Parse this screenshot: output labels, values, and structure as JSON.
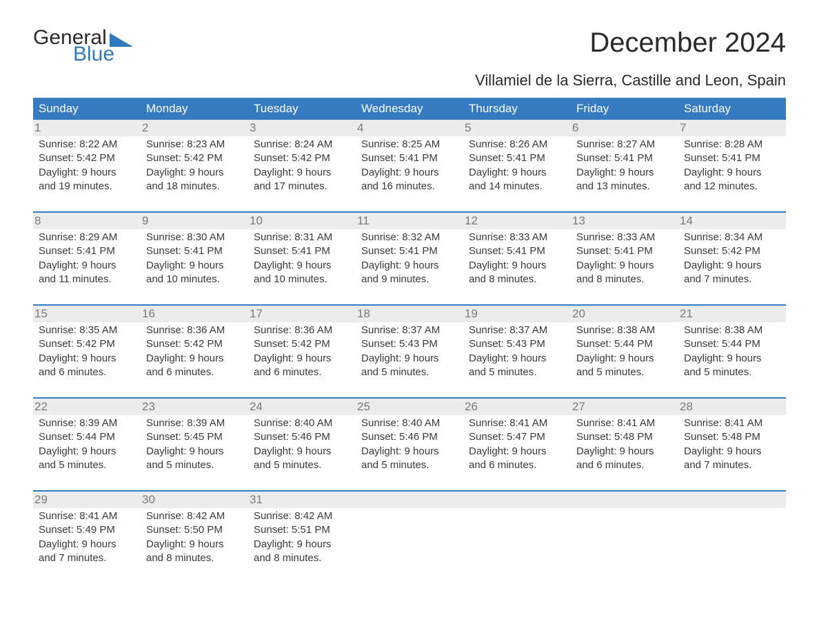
{
  "logo": {
    "text1": "General",
    "text2": "Blue"
  },
  "title": "December 2024",
  "location": "Villamiel de la Sierra, Castille and Leon, Spain",
  "colors": {
    "header_bg": "#367abf",
    "header_text": "#ffffff",
    "daynum_bg": "#ececec",
    "daynum_text": "#7a7a7a",
    "body_text": "#3a3a3a",
    "logo_dark": "#2a2a2a",
    "logo_blue": "#2f79bf",
    "week_rule": "#367abf",
    "page_bg": "#ffffff"
  },
  "layout": {
    "columns": 7,
    "rows": 5,
    "title_fontsize": 40,
    "location_fontsize": 22,
    "weekday_fontsize": 17,
    "daynum_fontsize": 17,
    "body_fontsize": 15
  },
  "weekdays": [
    "Sunday",
    "Monday",
    "Tuesday",
    "Wednesday",
    "Thursday",
    "Friday",
    "Saturday"
  ],
  "weeks": [
    [
      {
        "n": "1",
        "sunrise": "Sunrise: 8:22 AM",
        "sunset": "Sunset: 5:42 PM",
        "d1": "Daylight: 9 hours",
        "d2": "and 19 minutes."
      },
      {
        "n": "2",
        "sunrise": "Sunrise: 8:23 AM",
        "sunset": "Sunset: 5:42 PM",
        "d1": "Daylight: 9 hours",
        "d2": "and 18 minutes."
      },
      {
        "n": "3",
        "sunrise": "Sunrise: 8:24 AM",
        "sunset": "Sunset: 5:42 PM",
        "d1": "Daylight: 9 hours",
        "d2": "and 17 minutes."
      },
      {
        "n": "4",
        "sunrise": "Sunrise: 8:25 AM",
        "sunset": "Sunset: 5:41 PM",
        "d1": "Daylight: 9 hours",
        "d2": "and 16 minutes."
      },
      {
        "n": "5",
        "sunrise": "Sunrise: 8:26 AM",
        "sunset": "Sunset: 5:41 PM",
        "d1": "Daylight: 9 hours",
        "d2": "and 14 minutes."
      },
      {
        "n": "6",
        "sunrise": "Sunrise: 8:27 AM",
        "sunset": "Sunset: 5:41 PM",
        "d1": "Daylight: 9 hours",
        "d2": "and 13 minutes."
      },
      {
        "n": "7",
        "sunrise": "Sunrise: 8:28 AM",
        "sunset": "Sunset: 5:41 PM",
        "d1": "Daylight: 9 hours",
        "d2": "and 12 minutes."
      }
    ],
    [
      {
        "n": "8",
        "sunrise": "Sunrise: 8:29 AM",
        "sunset": "Sunset: 5:41 PM",
        "d1": "Daylight: 9 hours",
        "d2": "and 11 minutes."
      },
      {
        "n": "9",
        "sunrise": "Sunrise: 8:30 AM",
        "sunset": "Sunset: 5:41 PM",
        "d1": "Daylight: 9 hours",
        "d2": "and 10 minutes."
      },
      {
        "n": "10",
        "sunrise": "Sunrise: 8:31 AM",
        "sunset": "Sunset: 5:41 PM",
        "d1": "Daylight: 9 hours",
        "d2": "and 10 minutes."
      },
      {
        "n": "11",
        "sunrise": "Sunrise: 8:32 AM",
        "sunset": "Sunset: 5:41 PM",
        "d1": "Daylight: 9 hours",
        "d2": "and 9 minutes."
      },
      {
        "n": "12",
        "sunrise": "Sunrise: 8:33 AM",
        "sunset": "Sunset: 5:41 PM",
        "d1": "Daylight: 9 hours",
        "d2": "and 8 minutes."
      },
      {
        "n": "13",
        "sunrise": "Sunrise: 8:33 AM",
        "sunset": "Sunset: 5:41 PM",
        "d1": "Daylight: 9 hours",
        "d2": "and 8 minutes."
      },
      {
        "n": "14",
        "sunrise": "Sunrise: 8:34 AM",
        "sunset": "Sunset: 5:42 PM",
        "d1": "Daylight: 9 hours",
        "d2": "and 7 minutes."
      }
    ],
    [
      {
        "n": "15",
        "sunrise": "Sunrise: 8:35 AM",
        "sunset": "Sunset: 5:42 PM",
        "d1": "Daylight: 9 hours",
        "d2": "and 6 minutes."
      },
      {
        "n": "16",
        "sunrise": "Sunrise: 8:36 AM",
        "sunset": "Sunset: 5:42 PM",
        "d1": "Daylight: 9 hours",
        "d2": "and 6 minutes."
      },
      {
        "n": "17",
        "sunrise": "Sunrise: 8:36 AM",
        "sunset": "Sunset: 5:42 PM",
        "d1": "Daylight: 9 hours",
        "d2": "and 6 minutes."
      },
      {
        "n": "18",
        "sunrise": "Sunrise: 8:37 AM",
        "sunset": "Sunset: 5:43 PM",
        "d1": "Daylight: 9 hours",
        "d2": "and 5 minutes."
      },
      {
        "n": "19",
        "sunrise": "Sunrise: 8:37 AM",
        "sunset": "Sunset: 5:43 PM",
        "d1": "Daylight: 9 hours",
        "d2": "and 5 minutes."
      },
      {
        "n": "20",
        "sunrise": "Sunrise: 8:38 AM",
        "sunset": "Sunset: 5:44 PM",
        "d1": "Daylight: 9 hours",
        "d2": "and 5 minutes."
      },
      {
        "n": "21",
        "sunrise": "Sunrise: 8:38 AM",
        "sunset": "Sunset: 5:44 PM",
        "d1": "Daylight: 9 hours",
        "d2": "and 5 minutes."
      }
    ],
    [
      {
        "n": "22",
        "sunrise": "Sunrise: 8:39 AM",
        "sunset": "Sunset: 5:44 PM",
        "d1": "Daylight: 9 hours",
        "d2": "and 5 minutes."
      },
      {
        "n": "23",
        "sunrise": "Sunrise: 8:39 AM",
        "sunset": "Sunset: 5:45 PM",
        "d1": "Daylight: 9 hours",
        "d2": "and 5 minutes."
      },
      {
        "n": "24",
        "sunrise": "Sunrise: 8:40 AM",
        "sunset": "Sunset: 5:46 PM",
        "d1": "Daylight: 9 hours",
        "d2": "and 5 minutes."
      },
      {
        "n": "25",
        "sunrise": "Sunrise: 8:40 AM",
        "sunset": "Sunset: 5:46 PM",
        "d1": "Daylight: 9 hours",
        "d2": "and 5 minutes."
      },
      {
        "n": "26",
        "sunrise": "Sunrise: 8:41 AM",
        "sunset": "Sunset: 5:47 PM",
        "d1": "Daylight: 9 hours",
        "d2": "and 6 minutes."
      },
      {
        "n": "27",
        "sunrise": "Sunrise: 8:41 AM",
        "sunset": "Sunset: 5:48 PM",
        "d1": "Daylight: 9 hours",
        "d2": "and 6 minutes."
      },
      {
        "n": "28",
        "sunrise": "Sunrise: 8:41 AM",
        "sunset": "Sunset: 5:48 PM",
        "d1": "Daylight: 9 hours",
        "d2": "and 7 minutes."
      }
    ],
    [
      {
        "n": "29",
        "sunrise": "Sunrise: 8:41 AM",
        "sunset": "Sunset: 5:49 PM",
        "d1": "Daylight: 9 hours",
        "d2": "and 7 minutes."
      },
      {
        "n": "30",
        "sunrise": "Sunrise: 8:42 AM",
        "sunset": "Sunset: 5:50 PM",
        "d1": "Daylight: 9 hours",
        "d2": "and 8 minutes."
      },
      {
        "n": "31",
        "sunrise": "Sunrise: 8:42 AM",
        "sunset": "Sunset: 5:51 PM",
        "d1": "Daylight: 9 hours",
        "d2": "and 8 minutes."
      },
      {
        "n": "",
        "sunrise": "",
        "sunset": "",
        "d1": "",
        "d2": ""
      },
      {
        "n": "",
        "sunrise": "",
        "sunset": "",
        "d1": "",
        "d2": ""
      },
      {
        "n": "",
        "sunrise": "",
        "sunset": "",
        "d1": "",
        "d2": ""
      },
      {
        "n": "",
        "sunrise": "",
        "sunset": "",
        "d1": "",
        "d2": ""
      }
    ]
  ]
}
